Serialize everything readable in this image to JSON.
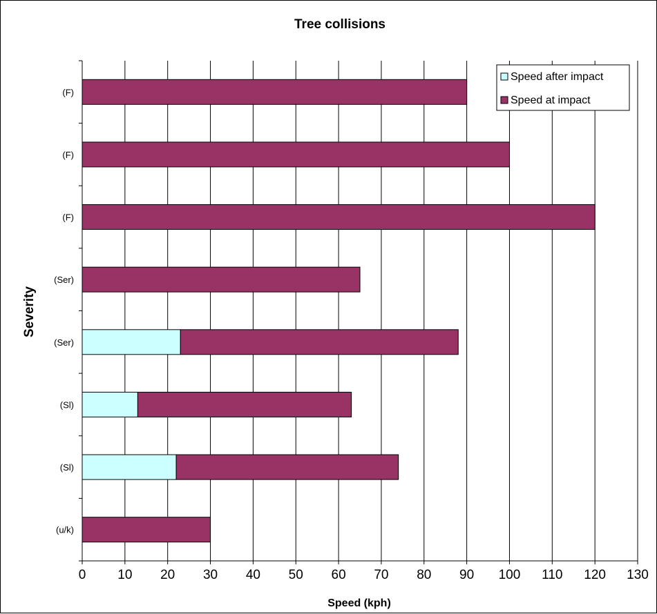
{
  "chart_data": {
    "type": "bar",
    "orientation": "horizontal",
    "stacked": true,
    "title": "Tree collisions",
    "xlabel": "Speed (kph)",
    "ylabel": "Severity",
    "xlim": [
      0,
      130
    ],
    "xticks": [
      0,
      10,
      20,
      30,
      40,
      50,
      60,
      70,
      80,
      90,
      100,
      110,
      120,
      130
    ],
    "grid": "vertical",
    "legend_position": "top-right",
    "categories": [
      "(F)",
      "(F)",
      "(F)",
      "(Ser)",
      "(Ser)",
      "(Sl)",
      "(Sl)",
      "(u/k)"
    ],
    "series": [
      {
        "name": "Speed after impact",
        "color": "#ccffff",
        "values": [
          0,
          0,
          0,
          0,
          23,
          13,
          22,
          0
        ]
      },
      {
        "name": "Speed at impact",
        "color": "#993366",
        "values": [
          90,
          100,
          120,
          65,
          65,
          50,
          52,
          30
        ]
      }
    ],
    "bar_totals": [
      90,
      100,
      120,
      65,
      88,
      63,
      74,
      30
    ]
  }
}
